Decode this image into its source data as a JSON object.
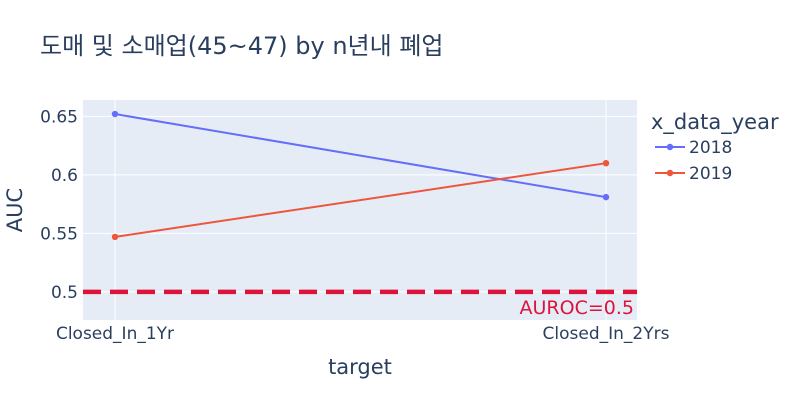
{
  "chart_data": {
    "type": "line",
    "title": "도매 및 소매업(45~47) by n년내 폐업",
    "xlabel": "target",
    "ylabel": "AUC",
    "categories": [
      "Closed_In_1Yr",
      "Closed_In_2Yrs"
    ],
    "ylim": [
      0.476,
      0.664
    ],
    "yticks": [
      0.5,
      0.55,
      0.6,
      0.65
    ],
    "yticklabels": [
      "0.5",
      "0.55",
      "0.6",
      "0.65"
    ],
    "grid": true,
    "legend": {
      "title": "x_data_year",
      "placement": "right"
    },
    "series": [
      {
        "name": "2018",
        "color": "#636efa",
        "values": [
          0.652,
          0.581
        ]
      },
      {
        "name": "2019",
        "color": "#ef553b",
        "values": [
          0.547,
          0.61
        ]
      }
    ],
    "reference_line": {
      "y": 0.5,
      "label": "AUROC=0.5",
      "color": "#dc143c"
    }
  }
}
